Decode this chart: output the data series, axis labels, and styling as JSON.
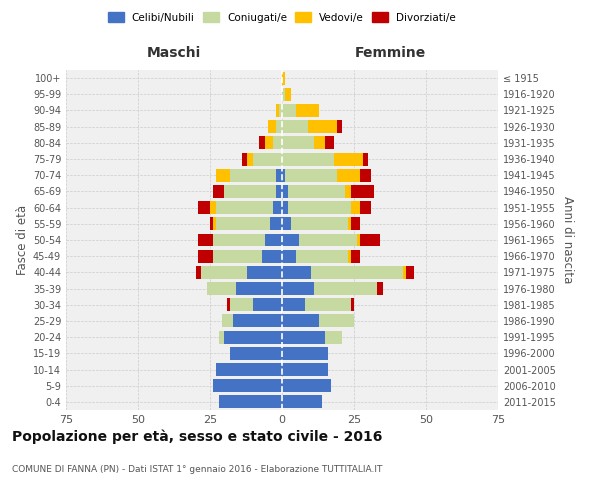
{
  "age_groups": [
    "0-4",
    "5-9",
    "10-14",
    "15-19",
    "20-24",
    "25-29",
    "30-34",
    "35-39",
    "40-44",
    "45-49",
    "50-54",
    "55-59",
    "60-64",
    "65-69",
    "70-74",
    "75-79",
    "80-84",
    "85-89",
    "90-94",
    "95-99",
    "100+"
  ],
  "birth_years": [
    "2011-2015",
    "2006-2010",
    "2001-2005",
    "1996-2000",
    "1991-1995",
    "1986-1990",
    "1981-1985",
    "1976-1980",
    "1971-1975",
    "1966-1970",
    "1961-1965",
    "1956-1960",
    "1951-1955",
    "1946-1950",
    "1941-1945",
    "1936-1940",
    "1931-1935",
    "1926-1930",
    "1921-1925",
    "1916-1920",
    "≤ 1915"
  ],
  "male": {
    "celibe": [
      22,
      24,
      23,
      18,
      20,
      17,
      10,
      16,
      12,
      7,
      6,
      4,
      3,
      2,
      2,
      0,
      0,
      0,
      0,
      0,
      0
    ],
    "coniugato": [
      0,
      0,
      0,
      0,
      2,
      4,
      8,
      10,
      16,
      17,
      18,
      19,
      20,
      18,
      16,
      10,
      3,
      2,
      1,
      0,
      0
    ],
    "vedovo": [
      0,
      0,
      0,
      0,
      0,
      0,
      0,
      0,
      0,
      0,
      0,
      1,
      2,
      0,
      5,
      2,
      3,
      3,
      1,
      0,
      0
    ],
    "divorziato": [
      0,
      0,
      0,
      0,
      0,
      0,
      1,
      0,
      2,
      5,
      5,
      1,
      4,
      4,
      0,
      2,
      2,
      0,
      0,
      0,
      0
    ]
  },
  "female": {
    "nubile": [
      14,
      17,
      16,
      16,
      15,
      13,
      8,
      11,
      10,
      5,
      6,
      3,
      2,
      2,
      1,
      0,
      0,
      0,
      0,
      0,
      0
    ],
    "coniugata": [
      0,
      0,
      0,
      0,
      6,
      12,
      16,
      22,
      32,
      18,
      20,
      20,
      22,
      20,
      18,
      18,
      11,
      9,
      5,
      1,
      0
    ],
    "vedova": [
      0,
      0,
      0,
      0,
      0,
      0,
      0,
      0,
      1,
      1,
      1,
      1,
      3,
      2,
      8,
      10,
      4,
      10,
      8,
      2,
      1
    ],
    "divorziata": [
      0,
      0,
      0,
      0,
      0,
      0,
      1,
      2,
      3,
      3,
      7,
      3,
      4,
      8,
      4,
      2,
      3,
      2,
      0,
      0,
      0
    ]
  },
  "colors": {
    "celibe": "#4472c4",
    "coniugato": "#c5d9a0",
    "vedovo": "#ffc000",
    "divorziato": "#c00000"
  },
  "xlim": 75,
  "title": "Popolazione per età, sesso e stato civile - 2016",
  "subtitle": "COMUNE DI FANNA (PN) - Dati ISTAT 1° gennaio 2016 - Elaborazione TUTTITALIA.IT",
  "ylabel_left": "Fasce di età",
  "ylabel_right": "Anni di nascita",
  "xlabel_left": "Maschi",
  "xlabel_right": "Femmine",
  "bg_color": "#f0f0f0",
  "grid_color": "#cccccc"
}
